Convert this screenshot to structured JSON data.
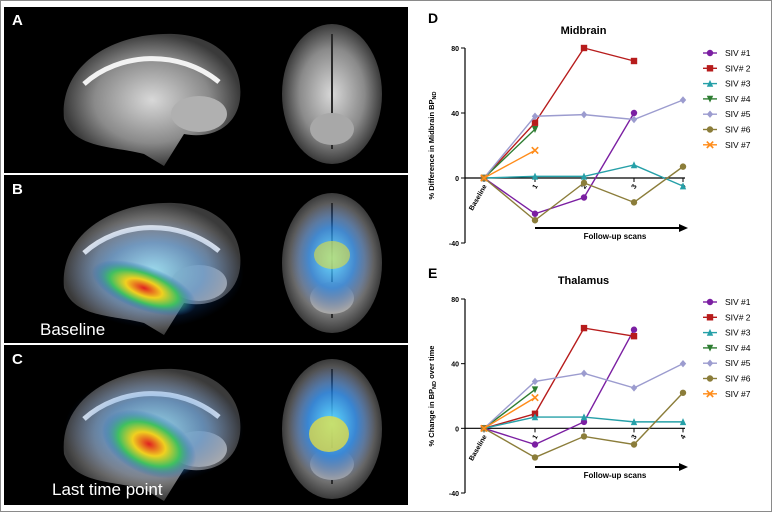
{
  "panels": [
    {
      "letter": "A",
      "caption": ""
    },
    {
      "letter": "B",
      "caption": "Baseline"
    },
    {
      "letter": "C",
      "caption": "Last time point"
    }
  ],
  "chart_data": [
    {
      "letter": "D",
      "type": "line",
      "title": "Midbrain",
      "ylabel": "% Difference in Midbrain BP",
      "ylabel_sub": "ND",
      "xlabel": "Follow-up scans",
      "categories": [
        "Baseline",
        "1",
        "2",
        "3",
        "4"
      ],
      "yticks": [
        -40,
        0,
        40,
        80
      ],
      "ylim": [
        -40,
        80
      ],
      "legend_position": "right",
      "series": [
        {
          "name": "SIV #1",
          "color": "#7b1fa2",
          "marker": "circle",
          "values": [
            0,
            -22,
            -12,
            40,
            null
          ]
        },
        {
          "name": "SIV# 2",
          "color": "#b71c1c",
          "marker": "square",
          "values": [
            0,
            34,
            80,
            72,
            null
          ]
        },
        {
          "name": "SIV #3",
          "color": "#26a0a8",
          "marker": "triangle",
          "values": [
            0,
            1,
            1,
            8,
            -5
          ]
        },
        {
          "name": "SIV #4",
          "color": "#2e7d32",
          "marker": "triangle-down",
          "values": [
            0,
            30,
            null,
            null,
            null
          ]
        },
        {
          "name": "SIV #5",
          "color": "#9c9ccf",
          "marker": "diamond",
          "values": [
            0,
            38,
            39,
            36,
            48
          ]
        },
        {
          "name": "SIV #6",
          "color": "#8b7d3a",
          "marker": "circle",
          "values": [
            0,
            -26,
            -3,
            -15,
            7
          ]
        },
        {
          "name": "SIV #7",
          "color": "#ff8c1a",
          "marker": "x",
          "values": [
            0,
            17,
            null,
            null,
            null
          ]
        }
      ]
    },
    {
      "letter": "E",
      "type": "line",
      "title": "Thalamus",
      "ylabel": "% Change in BP",
      "ylabel_sub": "ND",
      "ylabel_tail": " over time",
      "xlabel": "Follow-up scans",
      "categories": [
        "Baseline",
        "1",
        "2",
        "3",
        "4"
      ],
      "yticks": [
        -40,
        0,
        40,
        80
      ],
      "ylim": [
        -40,
        80
      ],
      "legend_position": "right",
      "series": [
        {
          "name": "SIV #1",
          "color": "#7b1fa2",
          "marker": "circle",
          "values": [
            0,
            -10,
            4,
            61,
            null
          ]
        },
        {
          "name": "SIV# 2",
          "color": "#b71c1c",
          "marker": "square",
          "values": [
            0,
            9,
            62,
            57,
            null
          ]
        },
        {
          "name": "SIV #3",
          "color": "#26a0a8",
          "marker": "triangle",
          "values": [
            0,
            7,
            7,
            4,
            4
          ]
        },
        {
          "name": "SIV #4",
          "color": "#2e7d32",
          "marker": "triangle-down",
          "values": [
            0,
            24,
            null,
            null,
            null
          ]
        },
        {
          "name": "SIV #5",
          "color": "#9c9ccf",
          "marker": "diamond",
          "values": [
            0,
            29,
            34,
            25,
            40
          ]
        },
        {
          "name": "SIV #6",
          "color": "#8b7d3a",
          "marker": "circle",
          "values": [
            0,
            -18,
            -5,
            -10,
            22
          ]
        },
        {
          "name": "SIV #7",
          "color": "#ff8c1a",
          "marker": "x",
          "values": [
            0,
            19,
            null,
            null,
            null
          ]
        }
      ]
    }
  ]
}
